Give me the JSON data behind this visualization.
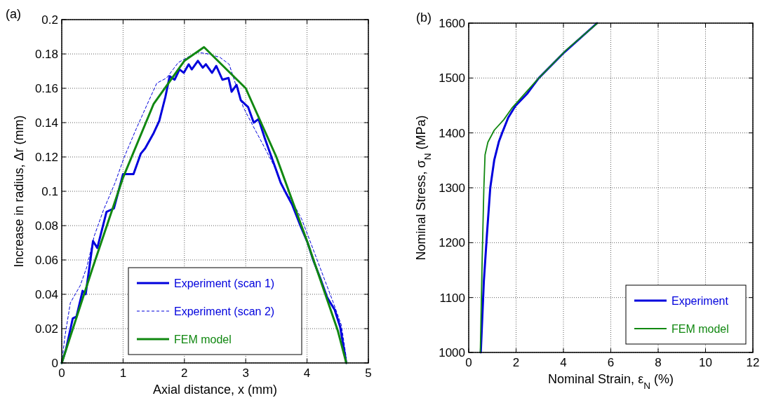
{
  "chart_data": [
    {
      "type": "line",
      "xlabel": "Axial distance, x (mm)",
      "ylabel": "Increase in radius, Δr (mm)",
      "annotations": [
        "(a)"
      ],
      "xlim": [
        0,
        5
      ],
      "xticks": [
        0,
        1,
        2,
        3,
        4,
        5
      ],
      "ylim": [
        0,
        0.2
      ],
      "yticks": [
        0,
        0.02,
        0.04,
        0.06,
        0.08,
        0.1,
        0.12,
        0.14,
        0.16,
        0.18,
        0.2
      ],
      "grid": true,
      "legend": "bottom",
      "series": [
        {
          "name": "Experiment (scan 1)",
          "color": "#0000dd",
          "line_style": "solid",
          "x": [
            0,
            0.07,
            0.18,
            0.24,
            0.34,
            0.39,
            0.51,
            0.58,
            0.73,
            0.85,
            1.0,
            1.17,
            1.29,
            1.36,
            1.5,
            1.59,
            1.69,
            1.76,
            1.84,
            1.92,
            1.99,
            2.07,
            2.12,
            2.22,
            2.3,
            2.35,
            2.45,
            2.52,
            2.62,
            2.72,
            2.77,
            2.85,
            2.92,
            3.04,
            3.13,
            3.21,
            3.31,
            3.38,
            3.5,
            3.57,
            3.67,
            3.76,
            3.88,
            4.01,
            4.1,
            4.22,
            4.33,
            4.45,
            4.54,
            4.64
          ],
          "values": [
            0,
            0.008,
            0.026,
            0.027,
            0.042,
            0.04,
            0.071,
            0.067,
            0.088,
            0.09,
            0.11,
            0.11,
            0.122,
            0.125,
            0.134,
            0.141,
            0.155,
            0.167,
            0.165,
            0.171,
            0.169,
            0.174,
            0.171,
            0.176,
            0.172,
            0.174,
            0.169,
            0.173,
            0.165,
            0.166,
            0.158,
            0.162,
            0.153,
            0.149,
            0.14,
            0.142,
            0.131,
            0.124,
            0.112,
            0.105,
            0.098,
            0.092,
            0.081,
            0.07,
            0.06,
            0.049,
            0.038,
            0.031,
            0.021,
            0
          ]
        },
        {
          "name": "Experiment (scan 2)",
          "color": "#0000dd",
          "line_style": "dashed",
          "x": [
            0,
            0.05,
            0.14,
            0.3,
            0.41,
            0.53,
            0.68,
            0.87,
            1.02,
            1.21,
            1.36,
            1.55,
            1.71,
            1.9,
            2.05,
            2.2,
            2.39,
            2.58,
            2.73,
            2.83,
            2.96,
            3.12,
            3.27,
            3.46,
            3.61,
            3.76,
            3.91,
            4.07,
            4.26,
            4.43,
            4.56,
            4.64
          ],
          "values": [
            0,
            0.015,
            0.035,
            0.045,
            0.056,
            0.074,
            0.089,
            0.105,
            0.12,
            0.136,
            0.148,
            0.163,
            0.166,
            0.175,
            0.178,
            0.181,
            0.18,
            0.178,
            0.174,
            0.163,
            0.149,
            0.138,
            0.128,
            0.115,
            0.102,
            0.094,
            0.084,
            0.069,
            0.051,
            0.035,
            0.022,
            0.003
          ]
        },
        {
          "name": "FEM model",
          "color": "#118811",
          "line_style": "solid",
          "x": [
            0,
            0.5,
            1,
            1.5,
            2,
            2.32,
            3,
            3.5,
            4,
            4.5,
            4.64
          ],
          "values": [
            0,
            0.055,
            0.108,
            0.151,
            0.176,
            0.184,
            0.16,
            0.12,
            0.071,
            0.019,
            0
          ]
        }
      ]
    },
    {
      "type": "line",
      "xlabel": "Nominal Strain, ε$_{N}$ (%)",
      "ylabel": "Nominal Stress, σ$_{N}$ (MPa)",
      "annotations": [
        "(b)"
      ],
      "xlim": [
        0,
        12
      ],
      "xticks": [
        0,
        2,
        4,
        6,
        8,
        10,
        12
      ],
      "ylim": [
        1000,
        1600
      ],
      "yticks": [
        1000,
        1100,
        1200,
        1300,
        1400,
        1500,
        1600
      ],
      "grid": true,
      "legend": "bottom right",
      "series": [
        {
          "name": "Experiment",
          "color": "#0000dd",
          "line_style": "solid",
          "x": [
            0.51,
            0.64,
            0.77,
            0.91,
            1.08,
            1.28,
            1.43,
            1.67,
            1.97,
            2.46,
            2.96,
            4.04,
            5.42
          ],
          "values": [
            1000,
            1130,
            1215,
            1300,
            1351,
            1385,
            1402,
            1428,
            1449,
            1471,
            1500,
            1547,
            1600
          ]
        },
        {
          "name": "FEM model",
          "color": "#118811",
          "line_style": "solid",
          "x": [
            0.49,
            0.57,
            0.64,
            0.69,
            0.81,
            1.08,
            1.48,
            1.82,
            2.17,
            2.96,
            4.14,
            5.44
          ],
          "values": [
            1000,
            1172,
            1300,
            1360,
            1383,
            1405,
            1424,
            1445,
            1462,
            1500,
            1552,
            1600
          ]
        }
      ]
    }
  ]
}
